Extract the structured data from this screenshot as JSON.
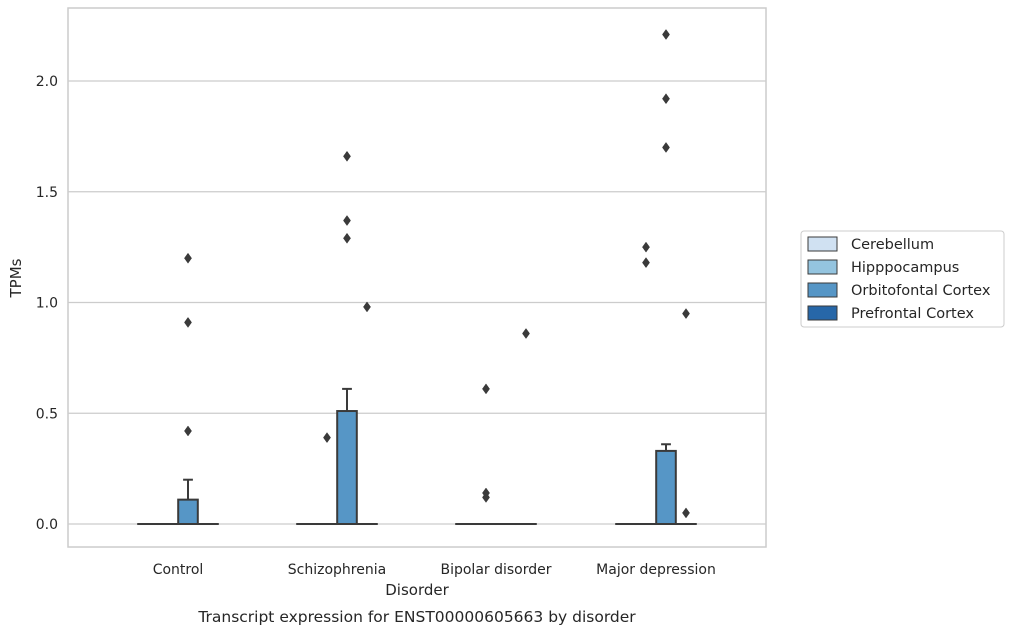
{
  "chart_data": {
    "type": "boxplot",
    "caption": "Transcript expression for ENST00000605663 by disorder",
    "xlabel": "Disorder",
    "ylabel": "TPMs",
    "ylim": [
      -0.11,
      2.34
    ],
    "yticks": [
      "0.0",
      "0.5",
      "1.0",
      "1.5",
      "2.0"
    ],
    "yticks_values": [
      0.0,
      0.5,
      1.0,
      1.5,
      2.0
    ],
    "grid": "horizontal",
    "legend_position": "right",
    "categories": [
      "Control",
      "Schizophrenia",
      "Bipolar disorder",
      "Major depression"
    ],
    "series": [
      {
        "name": "Cerebellum",
        "color": "#d0e1f2",
        "boxes": [
          {
            "q1": 0,
            "median": 0,
            "q3": 0,
            "whisker_low": 0,
            "whisker_high": 0,
            "outliers": []
          },
          {
            "q1": 0,
            "median": 0,
            "q3": 0,
            "whisker_low": 0,
            "whisker_high": 0,
            "outliers": []
          },
          {
            "q1": 0,
            "median": 0,
            "q3": 0,
            "whisker_low": 0,
            "whisker_high": 0,
            "outliers": []
          },
          {
            "q1": 0,
            "median": 0,
            "q3": 0,
            "whisker_low": 0,
            "whisker_high": 0,
            "outliers": []
          }
        ]
      },
      {
        "name": "Hipppocampus",
        "color": "#94c4df",
        "boxes": [
          {
            "q1": 0,
            "median": 0,
            "q3": 0,
            "whisker_low": 0,
            "whisker_high": 0,
            "outliers": []
          },
          {
            "q1": 0,
            "median": 0,
            "q3": 0,
            "whisker_low": 0,
            "whisker_high": 0,
            "outliers": [
              0.39
            ]
          },
          {
            "q1": 0,
            "median": 0,
            "q3": 0,
            "whisker_low": 0,
            "whisker_high": 0,
            "outliers": [
              0.12,
              0.14,
              0.61
            ]
          },
          {
            "q1": 0,
            "median": 0,
            "q3": 0,
            "whisker_low": 0,
            "whisker_high": 0,
            "outliers": [
              1.18,
              1.25
            ]
          }
        ]
      },
      {
        "name": "Orbitofontal Cortex",
        "color": "#5696c6",
        "boxes": [
          {
            "q1": 0,
            "median": 0,
            "q3": 0.11,
            "whisker_low": 0,
            "whisker_high": 0.2,
            "outliers": [
              0.42,
              0.91,
              1.2
            ]
          },
          {
            "q1": 0,
            "median": 0,
            "q3": 0.51,
            "whisker_low": 0,
            "whisker_high": 0.61,
            "outliers": [
              1.29,
              1.37,
              1.66
            ]
          },
          {
            "q1": 0,
            "median": 0,
            "q3": 0,
            "whisker_low": 0,
            "whisker_high": 0,
            "outliers": []
          },
          {
            "q1": 0,
            "median": 0,
            "q3": 0.33,
            "whisker_low": 0,
            "whisker_high": 0.36,
            "outliers": [
              1.7,
              1.92,
              2.21
            ]
          }
        ]
      },
      {
        "name": "Prefrontal Cortex",
        "color": "#2767a8",
        "boxes": [
          {
            "q1": 0,
            "median": 0,
            "q3": 0,
            "whisker_low": 0,
            "whisker_high": 0,
            "outliers": []
          },
          {
            "q1": 0,
            "median": 0,
            "q3": 0,
            "whisker_low": 0,
            "whisker_high": 0,
            "outliers": [
              0.98
            ]
          },
          {
            "q1": 0,
            "median": 0,
            "q3": 0,
            "whisker_low": 0,
            "whisker_high": 0,
            "outliers": [
              0.86
            ]
          },
          {
            "q1": 0,
            "median": 0,
            "q3": 0,
            "whisker_low": 0,
            "whisker_high": 0,
            "outliers": [
              0.05,
              0.95
            ]
          }
        ]
      }
    ]
  }
}
